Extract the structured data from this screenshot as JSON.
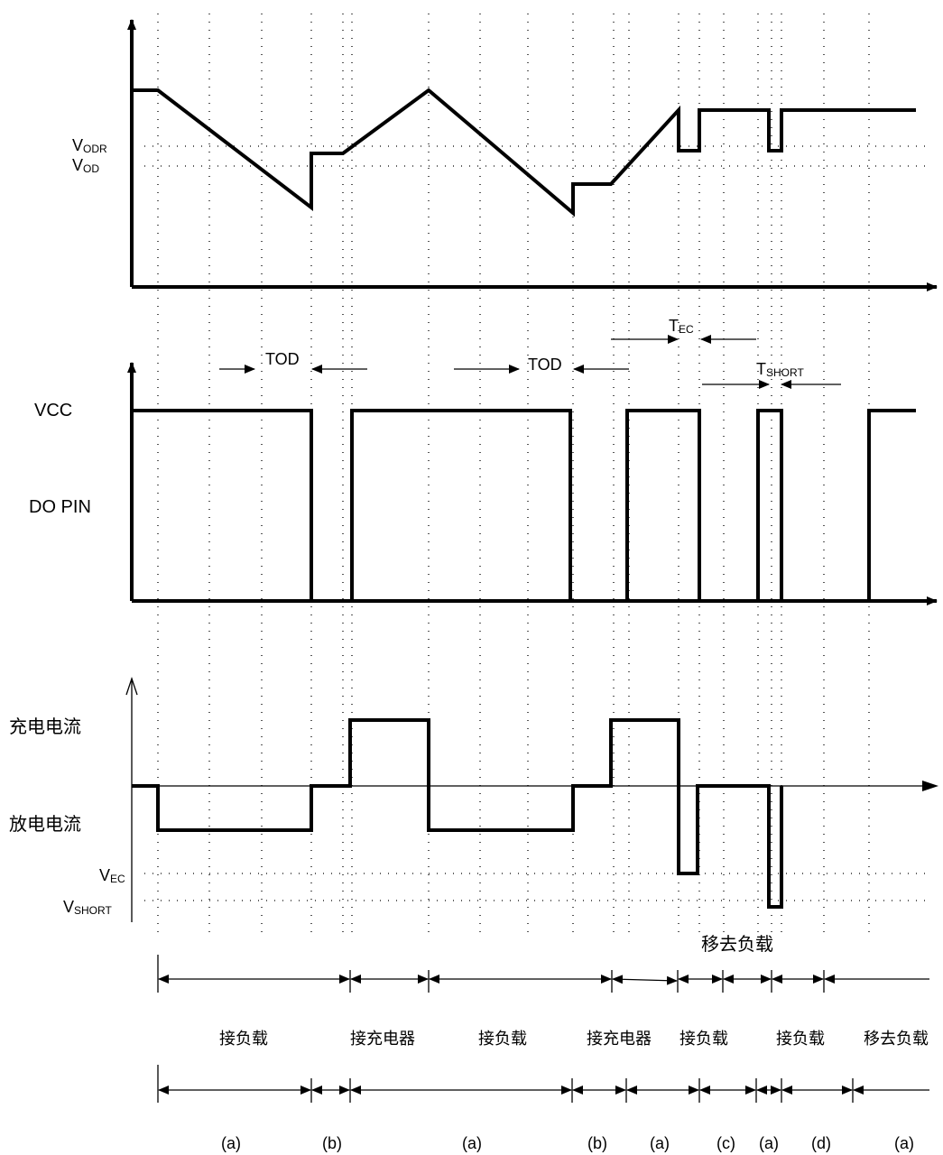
{
  "voltage_panel": {
    "vodr": {
      "main": "V",
      "sub": "ODR"
    },
    "vod": {
      "main": "V",
      "sub": "OD"
    }
  },
  "do_panel": {
    "vcc": "VCC",
    "do_pin": "DO PIN",
    "tod_1": "TOD",
    "tod_2": "TOD",
    "tec": {
      "main": "T",
      "sub": "EC"
    },
    "tshort": {
      "main": "T",
      "sub": "SHORT"
    }
  },
  "current_panel": {
    "charge_current": "充电电流",
    "discharge_current": "放电电流",
    "vec": {
      "main": "V",
      "sub": "EC"
    },
    "vshort": {
      "main": "V",
      "sub": "SHORT"
    }
  },
  "events": {
    "remove_load_top": "移去负载",
    "labels": [
      "接负载",
      "接充电器",
      "接负载",
      "接充电器",
      "接负载",
      "接负载",
      "移去负载"
    ]
  },
  "states": [
    "(a)",
    "(b)",
    "(a)",
    "(b)",
    "(a)",
    "(c)",
    "(a)",
    "(d)",
    "(a)"
  ]
}
